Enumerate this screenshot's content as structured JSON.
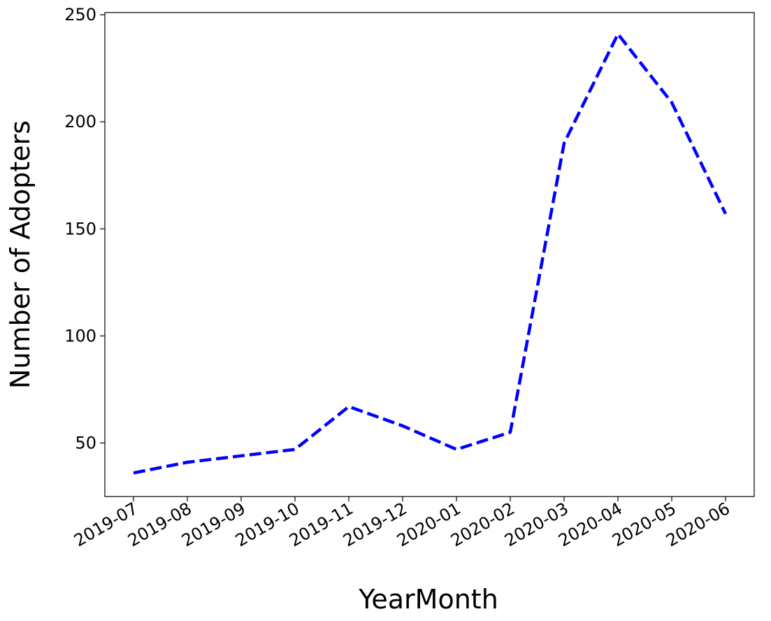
{
  "chart_data": {
    "type": "line",
    "title": "",
    "xlabel": "YearMonth",
    "ylabel": "Number of Adopters",
    "categories": [
      "2019-07",
      "2019-08",
      "2019-09",
      "2019-10",
      "2019-11",
      "2019-12",
      "2020-01",
      "2020-02",
      "2020-03",
      "2020-04",
      "2020-05",
      "2020-06"
    ],
    "series": [
      {
        "values": [
          36,
          41,
          44,
          47,
          67,
          58,
          47,
          55,
          190,
          241,
          209,
          157
        ],
        "color": "#0000ff",
        "line_style": "dashed"
      }
    ],
    "ylim": [
      25,
      251
    ],
    "yticks": [
      50,
      100,
      150,
      200,
      250
    ],
    "grid": false,
    "legend": "none"
  }
}
